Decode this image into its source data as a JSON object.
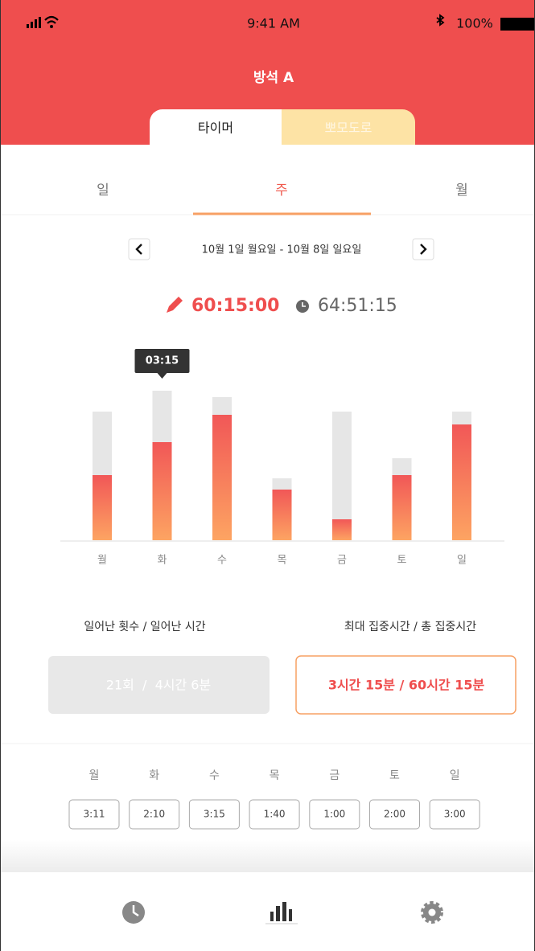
{
  "status": {
    "time": "9:41 AM",
    "battery": "100%"
  },
  "header": {
    "title": "방석 A",
    "tabs": [
      "타이머",
      "뽀모도로"
    ]
  },
  "period_tabs": {
    "items": [
      "일",
      "주",
      "월"
    ],
    "active": 1
  },
  "date_range": "10월 1일 월요일 - 10월 8일 일요일",
  "totals": {
    "focus": "60:15:00",
    "total": "64:51:15"
  },
  "chart_data": {
    "type": "bar",
    "categories": [
      "월",
      "화",
      "수",
      "목",
      "금",
      "토",
      "일"
    ],
    "values": [
      81,
      122,
      156,
      63,
      26,
      81,
      144
    ],
    "totals": [
      160,
      186,
      178,
      77,
      160,
      102,
      160
    ],
    "ylim": [
      0,
      200
    ],
    "colors": {
      "focus": [
        "#f15757",
        "#fda462"
      ],
      "total": "#e6e6e6"
    },
    "tooltip": {
      "index": 1,
      "label": "03:15"
    }
  },
  "stats": {
    "left": {
      "label": "일어난 횟수 / 일어난 시간",
      "value": "21회  /  4시간 6분"
    },
    "right": {
      "label": "최대 집중시간 / 총 집중시간",
      "value": "3시간 15분 / 60시간 15분"
    }
  },
  "daily_times": [
    "3:11",
    "2:10",
    "3:15",
    "1:40",
    "1:00",
    "2:00",
    "3:00"
  ]
}
